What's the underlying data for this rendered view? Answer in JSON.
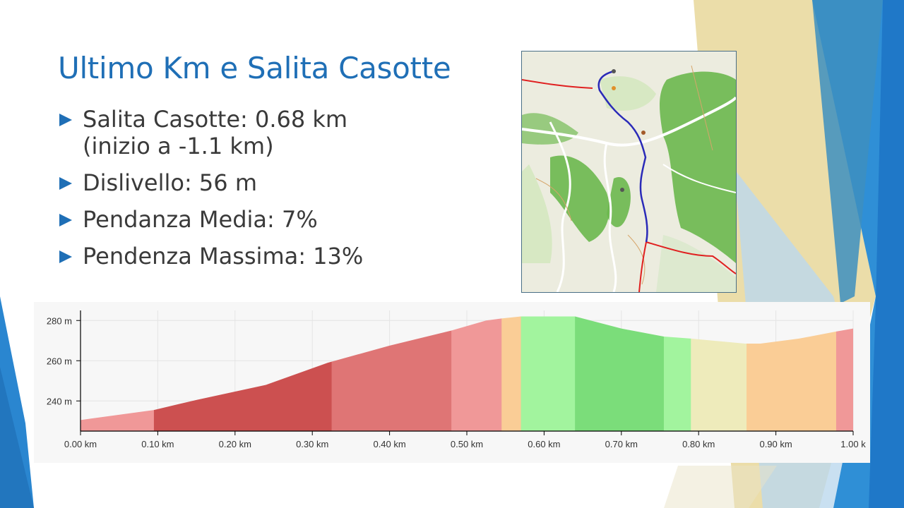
{
  "slide": {
    "title": "Ultimo Km e Salita Casotte",
    "bullets": [
      {
        "text": "Salita Casotte: 0.68 km\n(inizio a -1.1 km)"
      },
      {
        "text": "Dislivello: 56 m"
      },
      {
        "text": "Pendanza Media: 7%"
      },
      {
        "text": "Pendenza Massima: 13%"
      }
    ]
  },
  "map": {
    "route_color": "#2a2ab8",
    "road_color": "#e02020",
    "forest_color": "#6cb84e",
    "background_color": "#ececdf"
  },
  "chart_data": {
    "type": "area",
    "xlabel": "",
    "ylabel": "",
    "xlim": [
      0,
      1.0
    ],
    "ylim": [
      225,
      285
    ],
    "x_ticks": [
      0,
      0.1,
      0.2,
      0.3,
      0.4,
      0.5,
      0.6,
      0.7,
      0.8,
      0.9,
      1.0
    ],
    "x_tick_labels": [
      "0.00 km",
      "0.10 km",
      "0.20 km",
      "0.30 km",
      "0.40 km",
      "0.50 km",
      "0.60 km",
      "0.70 km",
      "0.80 km",
      "0.90 km",
      "1.00 k"
    ],
    "y_ticks": [
      240,
      260,
      280
    ],
    "y_tick_labels": [
      "240 m",
      "260 m",
      "280 m"
    ],
    "grid": true,
    "profile": [
      {
        "x": 0.0,
        "y": 230.5
      },
      {
        "x": 0.095,
        "y": 235.5
      },
      {
        "x": 0.15,
        "y": 240.5
      },
      {
        "x": 0.24,
        "y": 248
      },
      {
        "x": 0.32,
        "y": 259
      },
      {
        "x": 0.4,
        "y": 267.5
      },
      {
        "x": 0.48,
        "y": 275
      },
      {
        "x": 0.525,
        "y": 280
      },
      {
        "x": 0.545,
        "y": 281
      },
      {
        "x": 0.57,
        "y": 282
      },
      {
        "x": 0.64,
        "y": 282
      },
      {
        "x": 0.7,
        "y": 276
      },
      {
        "x": 0.755,
        "y": 272
      },
      {
        "x": 0.79,
        "y": 271
      },
      {
        "x": 0.86,
        "y": 268.5
      },
      {
        "x": 0.88,
        "y": 268.5
      },
      {
        "x": 0.93,
        "y": 271
      },
      {
        "x": 0.978,
        "y": 274.5
      },
      {
        "x": 1.0,
        "y": 276
      }
    ],
    "segments": [
      {
        "x0": 0.0,
        "x1": 0.095,
        "color": "#f09898"
      },
      {
        "x0": 0.095,
        "x1": 0.325,
        "color": "#cc5050"
      },
      {
        "x0": 0.325,
        "x1": 0.48,
        "color": "#df7575"
      },
      {
        "x0": 0.48,
        "x1": 0.545,
        "color": "#f09898"
      },
      {
        "x0": 0.545,
        "x1": 0.57,
        "color": "#facd96"
      },
      {
        "x0": 0.57,
        "x1": 0.64,
        "color": "#a2f49e"
      },
      {
        "x0": 0.64,
        "x1": 0.755,
        "color": "#7bdd7a"
      },
      {
        "x0": 0.755,
        "x1": 0.79,
        "color": "#a2f49e"
      },
      {
        "x0": 0.79,
        "x1": 0.862,
        "color": "#eeebbb"
      },
      {
        "x0": 0.862,
        "x1": 0.978,
        "color": "#facd96"
      },
      {
        "x0": 0.978,
        "x1": 1.0,
        "color": "#f09898"
      }
    ]
  }
}
